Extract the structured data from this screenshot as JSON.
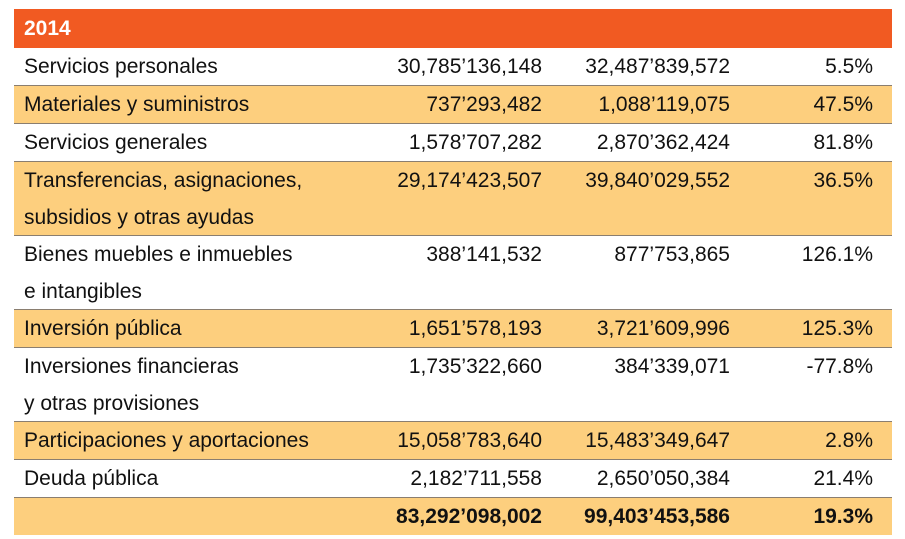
{
  "table": {
    "year": "2014",
    "rows": [
      {
        "label": [
          "Servicios personales"
        ],
        "v1": "30,785’136,148",
        "v2": "32,487’839,572",
        "pct": "5.5%"
      },
      {
        "label": [
          "Materiales y suministros"
        ],
        "v1": "737’293,482",
        "v2": "1,088’119,075",
        "pct": "47.5%"
      },
      {
        "label": [
          "Servicios generales"
        ],
        "v1": "1,578’707,282",
        "v2": "2,870’362,424",
        "pct": "81.8%"
      },
      {
        "label": [
          "Transferencias, asignaciones,",
          "subsidios y otras ayudas"
        ],
        "v1": "29,174’423,507",
        "v2": "39,840’029,552",
        "pct": "36.5%"
      },
      {
        "label": [
          "Bienes muebles e inmuebles",
          "e intangibles"
        ],
        "v1": "388’141,532",
        "v2": "877’753,865",
        "pct": "126.1%"
      },
      {
        "label": [
          "Inversión pública"
        ],
        "v1": "1,651’578,193",
        "v2": "3,721’609,996",
        "pct": "125.3%"
      },
      {
        "label": [
          "Inversiones financieras",
          "y otras provisiones"
        ],
        "v1": "1,735’322,660",
        "v2": "384’339,071",
        "pct": "-77.8%"
      },
      {
        "label": [
          "Participaciones y aportaciones"
        ],
        "v1": "15,058’783,640",
        "v2": "15,483’349,647",
        "pct": "2.8%"
      },
      {
        "label": [
          "Deuda pública"
        ],
        "v1": "2,182’711,558",
        "v2": "2,650’050,384",
        "pct": "21.4%"
      }
    ],
    "total": {
      "v1": "83,292’098,002",
      "v2": "99,403’453,586",
      "pct": "19.3%"
    }
  },
  "colors": {
    "header": "#f15a22",
    "band": "#fdcf7e"
  }
}
